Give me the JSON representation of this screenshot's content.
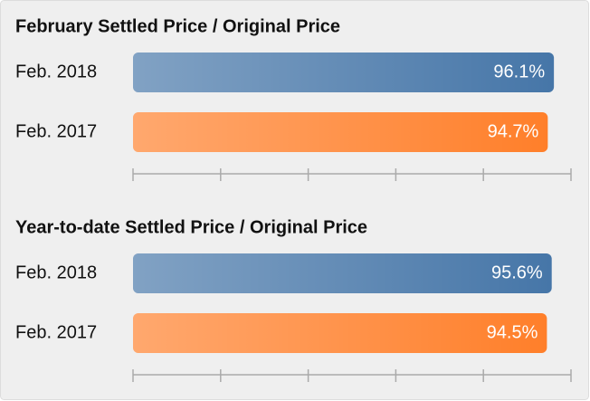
{
  "chart_data": [
    {
      "type": "bar",
      "orientation": "horizontal",
      "title": "February Settled Price / Original Price",
      "categories": [
        "Feb. 2018",
        "Feb. 2017"
      ],
      "values": [
        96.1,
        94.7
      ],
      "value_labels": [
        "96.1%",
        "94.7%"
      ],
      "colors": [
        "#4676a8",
        "#ff7f2a"
      ],
      "xlim": [
        0,
        100
      ],
      "xticks": [
        0,
        20,
        40,
        60,
        80,
        100
      ]
    },
    {
      "type": "bar",
      "orientation": "horizontal",
      "title": "Year-to-date Settled Price / Original Price",
      "categories": [
        "Feb. 2018",
        "Feb. 2017"
      ],
      "values": [
        95.6,
        94.5
      ],
      "value_labels": [
        "95.6%",
        "94.5%"
      ],
      "colors": [
        "#4676a8",
        "#ff7f2a"
      ],
      "xlim": [
        0,
        100
      ],
      "xticks": [
        0,
        20,
        40,
        60,
        80,
        100
      ]
    }
  ]
}
